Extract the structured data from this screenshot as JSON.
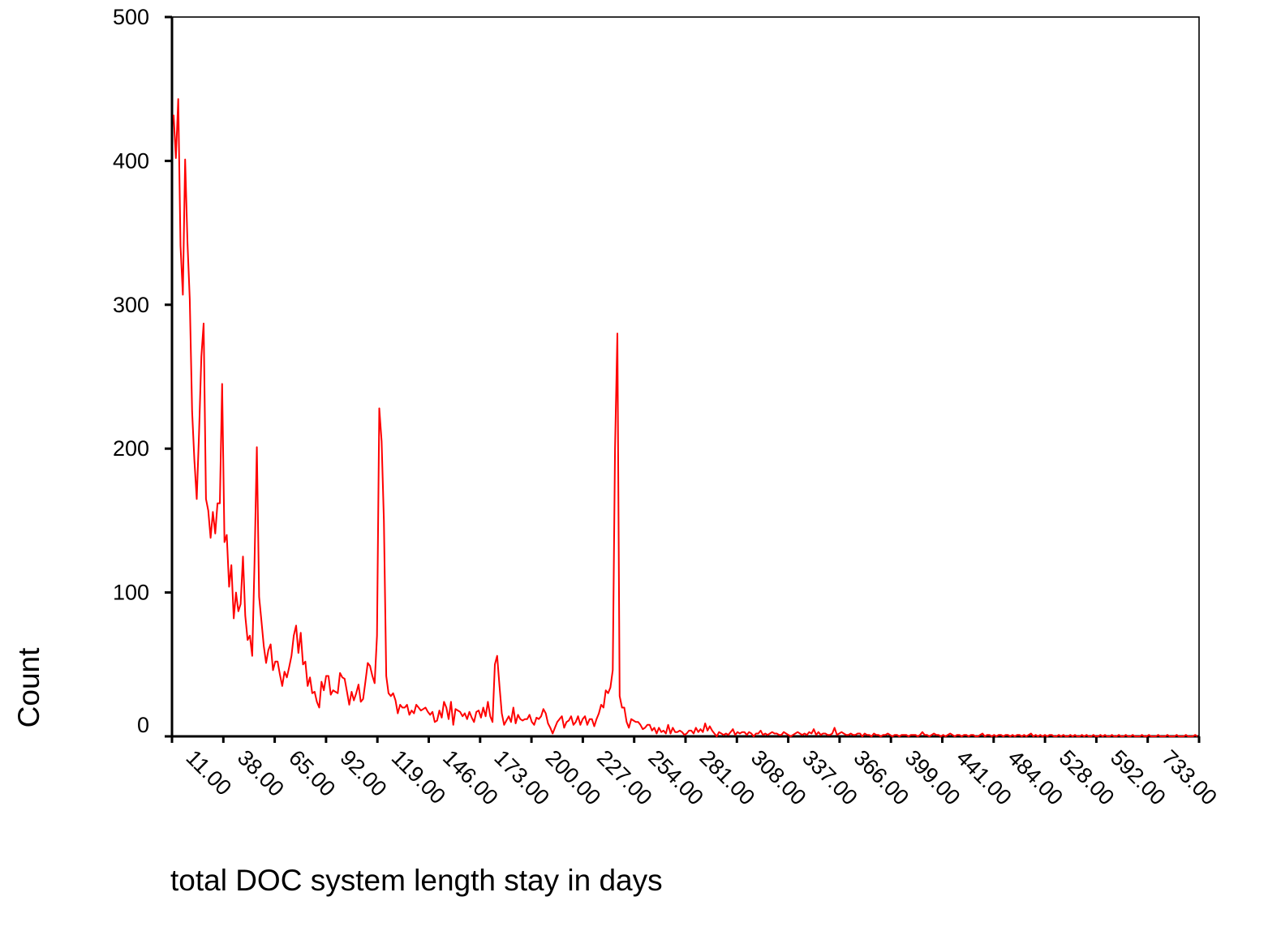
{
  "chart_data": {
    "type": "line",
    "title": "",
    "xlabel": "total DOC system length stay in days",
    "ylabel": "Count",
    "ylim": [
      0,
      500
    ],
    "y_ticks": [
      "0",
      "100",
      "200",
      "300",
      "400",
      "500"
    ],
    "x_tick_labels": [
      "11.00",
      "38.00",
      "65.00",
      "92.00",
      "119.00",
      "146.00",
      "173.00",
      "200.00",
      "227.00",
      "254.00",
      "281.00",
      "308.00",
      "337.00",
      "366.00",
      "399.00",
      "441.00",
      "484.00",
      "528.00",
      "592.00",
      "733.00"
    ],
    "x_scale": "categorical (each distinct stay length observed is one category; tick every 10th category)",
    "grid": false,
    "series_color": "#ff0000",
    "series": [
      {
        "values": [
          432,
          402,
          443,
          341,
          307,
          401,
          343,
          304,
          226,
          192,
          165,
          210,
          264,
          287,
          165,
          157,
          138,
          156,
          141,
          162,
          162,
          245,
          135,
          140,
          104,
          119,
          82,
          100,
          87,
          92,
          125,
          84,
          67,
          70,
          56,
          120,
          201,
          97,
          80,
          63,
          51,
          60,
          64,
          46,
          52,
          52,
          43,
          35,
          45,
          41,
          48,
          56,
          70,
          77,
          58,
          72,
          50,
          52,
          35,
          41,
          30,
          31,
          24,
          20,
          38,
          32,
          42,
          42,
          29,
          32,
          31,
          30,
          44,
          41,
          40,
          31,
          22,
          31,
          25,
          30,
          36,
          24,
          26,
          38,
          51,
          49,
          42,
          37,
          70,
          228,
          205,
          150,
          42,
          30,
          28,
          30,
          25,
          16,
          22,
          20,
          20,
          22,
          15,
          18,
          16,
          22,
          20,
          18,
          19,
          20,
          17,
          15,
          17,
          10,
          11,
          18,
          13,
          24,
          20,
          12,
          24,
          8,
          19,
          18,
          17,
          14,
          16,
          12,
          17,
          13,
          10,
          17,
          18,
          13,
          20,
          14,
          24,
          14,
          10,
          50,
          56,
          35,
          16,
          8,
          11,
          14,
          10,
          20,
          9,
          15,
          12,
          11,
          12,
          12,
          15,
          10,
          8,
          13,
          12,
          14,
          19,
          16,
          9,
          6,
          2,
          6,
          10,
          12,
          14,
          6,
          10,
          11,
          14,
          8,
          10,
          14,
          8,
          12,
          14,
          8,
          12,
          12,
          7,
          12,
          16,
          22,
          20,
          32,
          30,
          34,
          46,
          200,
          280,
          28,
          20,
          20,
          10,
          6,
          12,
          11,
          10,
          10,
          8,
          5,
          6,
          8,
          8,
          4,
          6,
          2,
          6,
          3,
          4,
          2,
          8,
          2,
          6,
          3,
          3,
          4,
          3,
          1,
          2,
          4,
          4,
          2,
          6,
          3,
          5,
          3,
          9,
          4,
          7,
          4,
          2,
          0,
          3,
          2,
          1,
          2,
          1,
          3,
          5,
          1,
          3,
          2,
          3,
          3,
          1,
          3,
          2,
          0,
          2,
          2,
          4,
          1,
          2,
          1,
          2,
          3,
          2,
          2,
          1,
          1,
          3,
          2,
          1,
          0,
          1,
          2,
          3,
          2,
          1,
          2,
          1,
          3,
          2,
          5,
          1,
          3,
          1,
          2,
          2,
          1,
          1,
          2,
          6,
          1,
          2,
          3,
          2,
          1,
          1,
          2,
          1,
          1,
          2,
          2,
          0,
          2,
          1,
          1,
          0,
          2,
          1,
          1,
          0,
          1,
          1,
          2,
          1,
          0,
          1,
          1,
          0,
          1,
          1,
          1,
          0,
          1,
          1,
          1,
          0,
          1,
          3,
          1,
          1,
          0,
          1,
          2,
          1,
          1,
          0,
          1,
          0,
          1,
          2,
          1,
          0,
          1,
          1,
          0,
          1,
          1,
          0,
          1,
          1,
          0,
          0,
          1,
          2,
          0,
          1,
          1,
          0,
          1,
          0,
          1,
          1,
          0,
          1,
          1,
          0,
          1,
          0,
          1,
          1,
          0,
          1,
          0,
          1,
          2,
          0,
          1,
          0,
          1,
          0,
          1,
          0,
          1,
          1,
          0,
          0,
          1,
          0,
          1,
          0,
          0,
          1,
          0,
          1,
          0,
          0,
          1,
          0,
          1,
          0,
          0,
          1,
          0,
          0,
          1,
          0,
          1,
          0,
          0,
          1,
          0,
          0,
          1,
          0,
          0,
          1,
          0,
          0,
          1,
          0,
          0,
          0,
          1,
          0,
          0,
          1,
          0,
          0,
          0,
          1,
          0,
          0,
          0,
          1,
          0,
          0,
          0,
          1,
          0,
          0,
          0,
          1,
          0,
          0,
          0,
          1,
          0
        ]
      }
    ]
  }
}
